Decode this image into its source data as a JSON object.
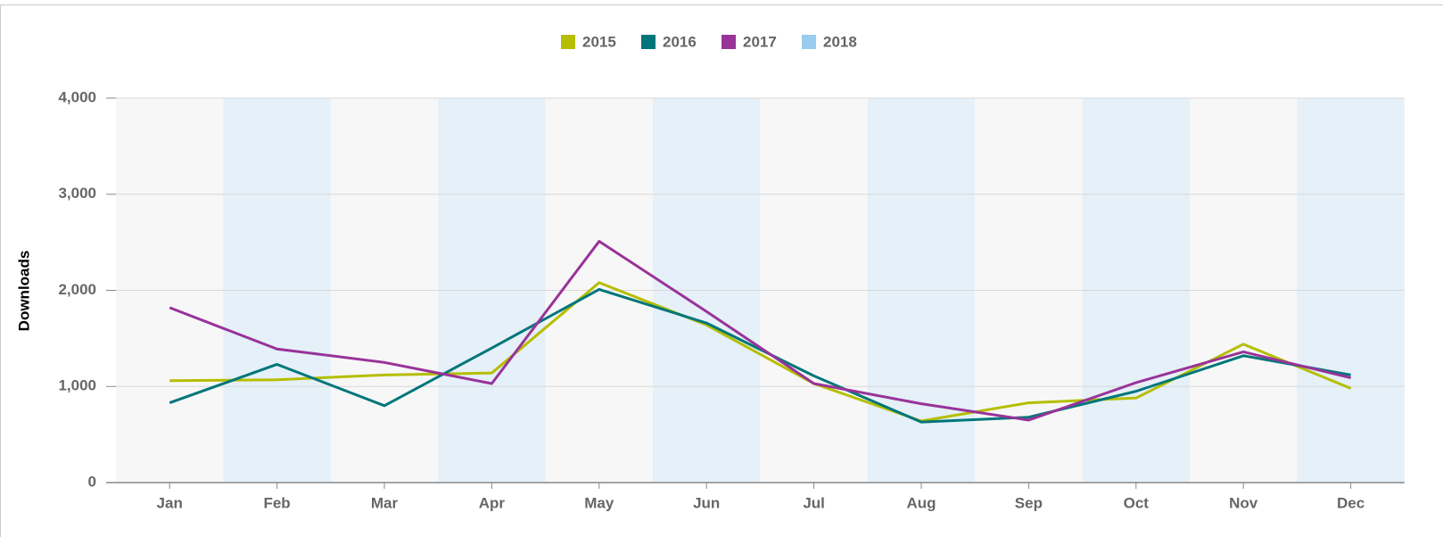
{
  "chart_data": {
    "type": "line",
    "y_label": "Downloads",
    "categories": [
      "Jan",
      "Feb",
      "Mar",
      "Apr",
      "May",
      "Jun",
      "Jul",
      "Aug",
      "Sep",
      "Oct",
      "Nov",
      "Dec"
    ],
    "series": [
      {
        "name": "2015",
        "color": "#b5be00",
        "values": [
          1060,
          1070,
          1120,
          1140,
          2080,
          1640,
          1030,
          640,
          830,
          880,
          1440,
          980
        ]
      },
      {
        "name": "2016",
        "color": "#00767a",
        "values": [
          830,
          1230,
          800,
          1400,
          2010,
          1660,
          1110,
          630,
          680,
          950,
          1320,
          1120
        ]
      },
      {
        "name": "2017",
        "color": "#993399",
        "values": [
          1820,
          1390,
          1250,
          1030,
          2510,
          1780,
          1030,
          820,
          650,
          1040,
          1360,
          1090
        ]
      },
      {
        "name": "2018",
        "color": "#99ccee",
        "values": [
          null,
          null,
          null,
          null,
          null,
          null,
          null,
          null,
          null,
          null,
          null,
          null
        ]
      }
    ],
    "ylim": [
      0,
      4000
    ],
    "yticks": [
      0,
      {
        "value": 1000,
        "label": "1,000"
      },
      {
        "value": 2000,
        "label": "2,000"
      },
      {
        "value": 3000,
        "label": "3,000"
      },
      {
        "value": 4000,
        "label": "4,000"
      }
    ],
    "grid": true,
    "legend": "top"
  }
}
